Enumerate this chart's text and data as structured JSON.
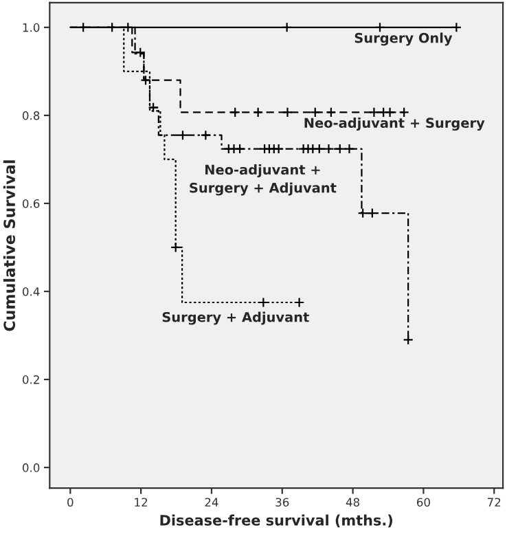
{
  "chart_data": {
    "type": "step",
    "xlabel": "Disease-free survival (mths.)",
    "ylabel": "Cumulative Survival",
    "xlim": [
      -3.5,
      73.5
    ],
    "ylim": [
      -0.047,
      1.056
    ],
    "xticks": [
      0,
      12,
      24,
      36,
      48,
      60,
      72
    ],
    "yticks": [
      {
        "value": 0,
        "label": "0.0"
      },
      {
        "value": 0.2,
        "label": "0.2"
      },
      {
        "value": 0.4,
        "label": "0.4"
      },
      {
        "value": 0.6,
        "label": "0.6"
      },
      {
        "value": 0.8,
        "label": "0.8"
      },
      {
        "value": 1,
        "label": "1.0"
      }
    ],
    "grid": false,
    "legend": false,
    "series": [
      {
        "name": "Surgery Only",
        "line_style": "solid",
        "color": "#000000",
        "x": [
          0,
          65.6
        ],
        "values": [
          1.0,
          1.0
        ]
      },
      {
        "type": "scatter",
        "marker": "cross",
        "color": "#000000",
        "x": [
          2.2,
          7.1,
          9.8,
          36.8,
          52.6,
          65.6
        ],
        "values": [
          1.0,
          1.0,
          1.0,
          1.0,
          1.0,
          1.0
        ]
      },
      {
        "name": "Neo-adjuvant + Surgery",
        "line_style": "dashed",
        "color": "#000000",
        "x": [
          0,
          10.5,
          12.5,
          18.7,
          56.7
        ],
        "values": [
          1.0,
          0.943,
          0.88,
          0.807,
          0.807
        ]
      },
      {
        "type": "scatter",
        "marker": "cross",
        "color": "#000000",
        "x": [
          11.9,
          12.8,
          28.0,
          31.9,
          36.9,
          41.6,
          44.3,
          51.6,
          53.2,
          54.3,
          56.7
        ],
        "values": [
          0.943,
          0.88,
          0.807,
          0.807,
          0.807,
          0.807,
          0.807,
          0.807,
          0.807,
          0.807,
          0.807
        ]
      },
      {
        "name": "Neo-adjuvant +\nSurgery + Adjuvant",
        "line_style": "dashdot",
        "color": "#000000",
        "x": [
          0,
          11,
          12.5,
          13.5,
          15,
          25.7,
          49.5,
          57.4
        ],
        "values": [
          1.0,
          0.94,
          0.88,
          0.818,
          0.755,
          0.724,
          0.578,
          0.29
        ]
      },
      {
        "type": "scatter",
        "marker": "cross",
        "color": "#000000",
        "x": [
          14.1,
          19.1,
          23.0,
          26.9,
          27.8,
          28.8,
          33.0,
          33.8,
          34.6,
          35.4,
          39.6,
          40.4,
          41.2,
          42.3,
          43.9,
          45.8,
          47.4,
          49.7,
          51.3,
          57.4
        ],
        "values": [
          0.818,
          0.755,
          0.755,
          0.724,
          0.724,
          0.724,
          0.724,
          0.724,
          0.724,
          0.724,
          0.724,
          0.724,
          0.724,
          0.724,
          0.724,
          0.724,
          0.724,
          0.578,
          0.578,
          0.29
        ]
      },
      {
        "name": "Surgery + Adjuvant",
        "line_style": "dotted",
        "color": "#000000",
        "x": [
          0,
          9.1,
          13.5,
          15.3,
          16,
          17.9,
          19,
          38.9
        ],
        "values": [
          1.0,
          0.9,
          0.81,
          0.755,
          0.7,
          0.5,
          0.375,
          0.375
        ]
      },
      {
        "type": "scatter",
        "marker": "cross",
        "color": "#000000",
        "x": [
          17.9,
          32.8,
          38.9
        ],
        "values": [
          0.5,
          0.375,
          0.375
        ]
      }
    ]
  }
}
